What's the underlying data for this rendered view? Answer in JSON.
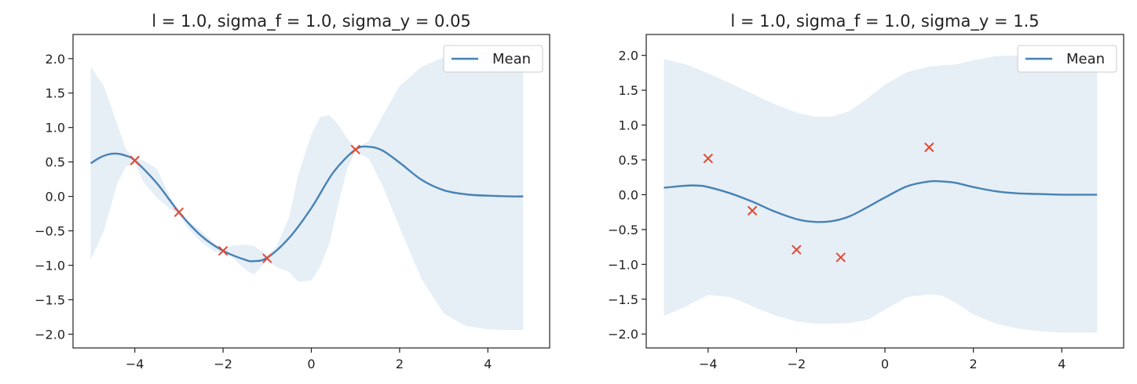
{
  "chart_data": [
    {
      "type": "line",
      "title": "l = 1.0, sigma_f = 1.0, sigma_y = 0.05",
      "xlabel": "",
      "ylabel": "",
      "xlim": [
        -5.4,
        5.4
      ],
      "ylim": [
        -2.2,
        2.35
      ],
      "xticks": [
        -4,
        -2,
        0,
        2,
        4
      ],
      "xtick_labels": [
        "−4",
        "−2",
        "0",
        "2",
        "4"
      ],
      "yticks": [
        2.0,
        1.5,
        1.0,
        0.5,
        0.0,
        -0.5,
        -1.0,
        -1.5,
        -2.0
      ],
      "ytick_labels": [
        "2.0",
        "1.5",
        "1.0",
        "0.5",
        "0.0",
        "−0.5",
        "−1.0",
        "−1.5",
        "−2.0"
      ],
      "grid": false,
      "legend": {
        "position": "upper right",
        "entries": [
          "Mean"
        ]
      },
      "series": [
        {
          "name": "Mean",
          "kind": "line",
          "color": "#4682b4",
          "x": [
            -5.0,
            -4.8,
            -4.6,
            -4.4,
            -4.2,
            -4.0,
            -3.5,
            -3.0,
            -2.5,
            -2.0,
            -1.5,
            -1.3,
            -1.0,
            -0.5,
            0.0,
            0.5,
            1.0,
            1.3,
            1.6,
            2.0,
            2.5,
            3.0,
            3.5,
            4.0,
            4.5,
            4.8
          ],
          "y": [
            0.48,
            0.56,
            0.61,
            0.62,
            0.59,
            0.52,
            0.19,
            -0.23,
            -0.57,
            -0.79,
            -0.92,
            -0.94,
            -0.89,
            -0.6,
            -0.17,
            0.35,
            0.68,
            0.72,
            0.67,
            0.49,
            0.24,
            0.09,
            0.03,
            0.01,
            0.0,
            0.0
          ]
        },
        {
          "kind": "band",
          "color": "#e6eef6",
          "x": [
            -5.0,
            -4.7,
            -4.4,
            -4.2,
            -4.0,
            -3.8,
            -3.5,
            -3.2,
            -3.0,
            -2.8,
            -2.5,
            -2.2,
            -2.0,
            -1.8,
            -1.5,
            -1.3,
            -1.0,
            -0.8,
            -0.5,
            -0.3,
            0.0,
            0.2,
            0.4,
            0.6,
            0.8,
            1.0,
            1.3,
            1.6,
            2.0,
            2.5,
            3.0,
            3.5,
            4.0,
            4.5,
            4.8
          ],
          "upper": [
            1.88,
            1.6,
            1.05,
            0.68,
            0.55,
            0.52,
            0.4,
            0.0,
            -0.19,
            -0.36,
            -0.5,
            -0.68,
            -0.76,
            -0.72,
            -0.7,
            -0.72,
            -0.85,
            -0.74,
            -0.3,
            0.3,
            0.9,
            1.15,
            1.18,
            1.05,
            0.85,
            0.7,
            0.8,
            1.15,
            1.6,
            1.88,
            2.02,
            2.08,
            2.1,
            2.1,
            2.1
          ],
          "lower": [
            -0.92,
            -0.5,
            0.19,
            0.43,
            0.49,
            0.2,
            -0.02,
            -0.18,
            -0.27,
            -0.46,
            -0.66,
            -0.8,
            -0.82,
            -0.88,
            -1.06,
            -1.14,
            -0.93,
            -1.02,
            -1.1,
            -1.24,
            -1.22,
            -1.02,
            -0.7,
            -0.15,
            0.38,
            0.66,
            0.55,
            0.18,
            -0.45,
            -1.2,
            -1.7,
            -1.88,
            -1.93,
            -1.94,
            -1.94
          ]
        },
        {
          "kind": "scatter",
          "marker": "x",
          "color": "#e24a33",
          "x": [
            -4,
            -3,
            -2,
            -1,
            1
          ],
          "y": [
            0.52,
            -0.23,
            -0.79,
            -0.9,
            0.68
          ]
        }
      ]
    },
    {
      "type": "line",
      "title": "l = 1.0, sigma_f = 1.0, sigma_y = 1.5",
      "xlabel": "",
      "ylabel": "",
      "xlim": [
        -5.4,
        5.4
      ],
      "ylim": [
        -2.2,
        2.3
      ],
      "xticks": [
        -4,
        -2,
        0,
        2,
        4
      ],
      "xtick_labels": [
        "−4",
        "−2",
        "0",
        "2",
        "4"
      ],
      "yticks": [
        2.0,
        1.5,
        1.0,
        0.5,
        0.0,
        -0.5,
        -1.0,
        -1.5,
        -2.0
      ],
      "ytick_labels": [
        "2.0",
        "1.5",
        "1.0",
        "0.5",
        "0.0",
        "−0.5",
        "−1.0",
        "−1.5",
        "−2.0"
      ],
      "grid": false,
      "legend": {
        "position": "upper right",
        "entries": [
          "Mean"
        ]
      },
      "series": [
        {
          "name": "Mean",
          "kind": "line",
          "color": "#4682b4",
          "x": [
            -5.0,
            -4.5,
            -4.2,
            -4.0,
            -3.5,
            -3.0,
            -2.5,
            -2.0,
            -1.6,
            -1.2,
            -0.8,
            -0.4,
            0.0,
            0.5,
            1.0,
            1.3,
            1.6,
            2.0,
            2.5,
            3.0,
            3.5,
            4.0,
            4.5,
            4.8
          ],
          "y": [
            0.1,
            0.13,
            0.13,
            0.11,
            0.02,
            -0.1,
            -0.24,
            -0.35,
            -0.39,
            -0.38,
            -0.31,
            -0.18,
            -0.04,
            0.12,
            0.19,
            0.19,
            0.17,
            0.11,
            0.05,
            0.02,
            0.01,
            0.0,
            0.0,
            0.0
          ]
        },
        {
          "kind": "band",
          "color": "#e6eef6",
          "x": [
            -5.0,
            -4.5,
            -4.0,
            -3.5,
            -3.0,
            -2.5,
            -2.0,
            -1.6,
            -1.2,
            -0.8,
            -0.4,
            0.0,
            0.5,
            1.0,
            1.3,
            1.6,
            2.0,
            2.5,
            3.0,
            3.5,
            4.0,
            4.5,
            4.8
          ],
          "upper": [
            1.95,
            1.87,
            1.74,
            1.6,
            1.45,
            1.3,
            1.18,
            1.12,
            1.12,
            1.2,
            1.38,
            1.58,
            1.76,
            1.84,
            1.86,
            1.87,
            1.93,
            1.99,
            2.0,
            2.0,
            2.0,
            2.0,
            2.0
          ],
          "lower": [
            -1.74,
            -1.6,
            -1.44,
            -1.47,
            -1.6,
            -1.73,
            -1.82,
            -1.85,
            -1.85,
            -1.84,
            -1.8,
            -1.65,
            -1.47,
            -1.43,
            -1.45,
            -1.55,
            -1.72,
            -1.85,
            -1.92,
            -1.96,
            -1.98,
            -1.98,
            -1.98
          ]
        },
        {
          "kind": "scatter",
          "marker": "x",
          "color": "#e24a33",
          "x": [
            -4,
            -3,
            -2,
            -1,
            1
          ],
          "y": [
            0.52,
            -0.23,
            -0.79,
            -0.9,
            0.68
          ]
        }
      ]
    }
  ]
}
